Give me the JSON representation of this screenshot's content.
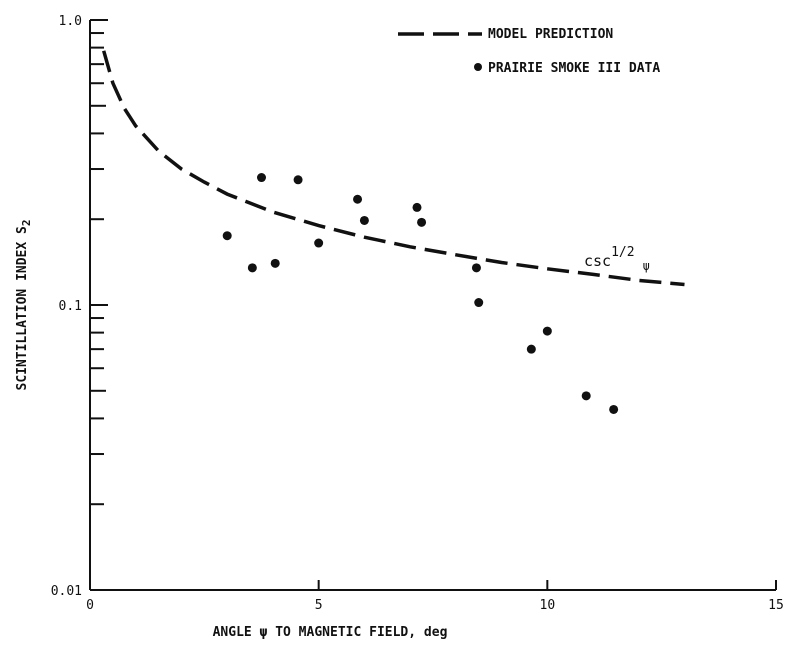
{
  "chart_data": {
    "type": "scatter",
    "xlabel": "ANGLE ψ TO MAGNETIC FIELD, deg",
    "ylabel_main": "SCINTILLATION INDEX S",
    "ylabel_sub": "2",
    "x_ticks": [
      0,
      5,
      10,
      15
    ],
    "x_tick_labels": [
      "0",
      "5",
      "10",
      "15"
    ],
    "y_scale": "log",
    "y_ticks": [
      0.01,
      0.1,
      1.0
    ],
    "y_tick_labels": [
      "0.01",
      "0.1",
      "1.0"
    ],
    "xlim": [
      0,
      15
    ],
    "ylim": [
      0.01,
      1.0
    ],
    "legend": [
      {
        "name": "MODEL PREDICTION",
        "style": "dashed-line"
      },
      {
        "name": "PRAIRIE SMOKE III DATA",
        "style": "dot"
      }
    ],
    "legend_position": "top-right",
    "annotation": {
      "base": "csc",
      "superscript": "1/2",
      "symbol": "ψ"
    },
    "series": [
      {
        "name": "MODEL PREDICTION",
        "type": "line",
        "function": "0.95 * csc(psi)^(1/2) scaled",
        "x": [
          0.3,
          0.5,
          0.75,
          1.0,
          1.5,
          2.0,
          2.5,
          3.0,
          4.0,
          5.0,
          6.0,
          7.0,
          8.0,
          9.0,
          10.0,
          11.0,
          12.0,
          13.0
        ],
        "y": [
          0.78,
          0.6,
          0.49,
          0.425,
          0.347,
          0.3,
          0.27,
          0.245,
          0.212,
          0.19,
          0.173,
          0.16,
          0.15,
          0.141,
          0.134,
          0.128,
          0.122,
          0.118
        ]
      },
      {
        "name": "PRAIRIE SMOKE III DATA",
        "type": "scatter",
        "x": [
          3.0,
          3.55,
          3.75,
          4.05,
          4.55,
          5.0,
          5.85,
          6.0,
          7.15,
          7.25,
          8.45,
          8.5,
          9.65,
          10.0,
          10.85,
          11.45
        ],
        "y": [
          0.175,
          0.135,
          0.28,
          0.14,
          0.275,
          0.165,
          0.235,
          0.198,
          0.22,
          0.195,
          0.135,
          0.102,
          0.07,
          0.081,
          0.048,
          0.043
        ]
      }
    ],
    "colors": {
      "ink": "#111111",
      "background": "#ffffff"
    }
  }
}
